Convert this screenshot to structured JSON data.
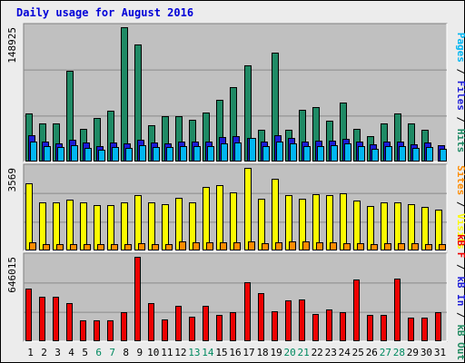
{
  "title": "Daily usage for August 2016",
  "colors": {
    "hits": "#1f8a65",
    "files": "#1c1cd8",
    "pages": "#00b6f2",
    "visits": "#fcfc00",
    "sites": "#ff8c00",
    "kbin": "#1c1cd8",
    "kbout": "#208a60",
    "kbf": "#ee0000",
    "panel_bg": "#c0c0c0",
    "frame_bg": "#ececec",
    "highlight_day": "#008a60",
    "normal_day": "#000000",
    "title": "#0000d8"
  },
  "chart_data": [
    {
      "type": "bar",
      "panel": "hits-files-pages",
      "ymax_label": "148925",
      "ylim": [
        0,
        148925
      ],
      "right_label": [
        {
          "text": "Pages",
          "color": "#00b6f2"
        },
        {
          "text": " / ",
          "color": "#000000"
        },
        {
          "text": "Files",
          "color": "#1c1cd8"
        },
        {
          "text": " / ",
          "color": "#000000"
        },
        {
          "text": "Hits",
          "color": "#1f8a65"
        }
      ],
      "categories": [
        "1",
        "2",
        "3",
        "4",
        "5",
        "6",
        "7",
        "8",
        "9",
        "10",
        "11",
        "12",
        "13",
        "14",
        "15",
        "16",
        "17",
        "18",
        "19",
        "20",
        "21",
        "22",
        "23",
        "24",
        "25",
        "26",
        "27",
        "28",
        "29",
        "30",
        "31"
      ],
      "series": [
        {
          "name": "Hits",
          "color": "#1f8a65",
          "values": [
            53000,
            42000,
            42000,
            101000,
            36000,
            48000,
            56000,
            148925,
            130000,
            40000,
            50000,
            50000,
            46000,
            54000,
            68000,
            83000,
            107000,
            35000,
            121000,
            35000,
            57000,
            60000,
            45000,
            65000,
            36000,
            28000,
            42000,
            53000,
            42000,
            35000,
            0
          ]
        },
        {
          "name": "Files",
          "color": "#1c1cd8",
          "values": [
            29000,
            22000,
            20000,
            24000,
            21000,
            17000,
            21000,
            20000,
            24000,
            21000,
            20000,
            22000,
            22000,
            22000,
            27000,
            28000,
            26000,
            22000,
            29000,
            26000,
            22000,
            23000,
            23000,
            25000,
            22000,
            19000,
            22000,
            22000,
            19000,
            21000,
            18000
          ]
        },
        {
          "name": "Pages",
          "color": "#00b6f2",
          "values": [
            22000,
            17000,
            16000,
            18000,
            15000,
            13000,
            16000,
            15000,
            18000,
            16000,
            16000,
            17000,
            17000,
            17000,
            20000,
            21000,
            26000,
            17000,
            22000,
            20000,
            17000,
            17000,
            18000,
            20000,
            17000,
            14000,
            17000,
            17000,
            15000,
            16000,
            14000
          ]
        }
      ]
    },
    {
      "type": "bar",
      "panel": "visits-sites",
      "ymax_label": "3569",
      "ylim": [
        0,
        3569
      ],
      "right_label": [
        {
          "text": "Sites",
          "color": "#ff8c00"
        },
        {
          "text": " / ",
          "color": "#000000"
        },
        {
          "text": "Visits",
          "color": "#fcfc00"
        }
      ],
      "categories": [
        "1",
        "2",
        "3",
        "4",
        "5",
        "6",
        "7",
        "8",
        "9",
        "10",
        "11",
        "12",
        "13",
        "14",
        "15",
        "16",
        "17",
        "18",
        "19",
        "20",
        "21",
        "22",
        "23",
        "24",
        "25",
        "26",
        "27",
        "28",
        "29",
        "30",
        "31"
      ],
      "series": [
        {
          "name": "Visits",
          "color": "#fcfc00",
          "values": [
            2920,
            2080,
            2080,
            2190,
            2080,
            1960,
            1960,
            2080,
            2410,
            2080,
            2010,
            2280,
            2080,
            2740,
            2820,
            2520,
            3569,
            2250,
            3080,
            2390,
            2230,
            2420,
            2380,
            2460,
            2150,
            1910,
            2080,
            2080,
            2010,
            1900,
            1770
          ]
        },
        {
          "name": "Sites",
          "color": "#ff8c00",
          "values": [
            350,
            280,
            260,
            290,
            270,
            270,
            270,
            290,
            300,
            270,
            270,
            380,
            370,
            340,
            340,
            340,
            400,
            300,
            340,
            380,
            400,
            370,
            360,
            320,
            300,
            290,
            300,
            330,
            300,
            290,
            280
          ]
        }
      ]
    },
    {
      "type": "bar",
      "panel": "kb",
      "ymax_label": "646015",
      "ylim": [
        0,
        646015
      ],
      "right_label": [
        {
          "text": "kB F",
          "color": "#ee0000"
        },
        {
          "text": " / ",
          "color": "#000000"
        },
        {
          "text": "kB In",
          "color": "#1c1cd8"
        },
        {
          "text": " / ",
          "color": "#000000"
        },
        {
          "text": "kB Out",
          "color": "#208a60"
        }
      ],
      "categories": [
        "1",
        "2",
        "3",
        "4",
        "5",
        "6",
        "7",
        "8",
        "9",
        "10",
        "11",
        "12",
        "13",
        "14",
        "15",
        "16",
        "17",
        "18",
        "19",
        "20",
        "21",
        "22",
        "23",
        "24",
        "25",
        "26",
        "27",
        "28",
        "29",
        "30",
        "31"
      ],
      "series": [
        {
          "name": "kB F",
          "color": "#ee0000",
          "values": [
            400000,
            340000,
            340000,
            290000,
            160000,
            160000,
            160000,
            220000,
            646015,
            290000,
            170000,
            270000,
            190000,
            270000,
            200000,
            220000,
            450000,
            370000,
            230000,
            310000,
            320000,
            210000,
            240000,
            220000,
            470000,
            200000,
            200000,
            480000,
            180000,
            180000,
            220000
          ]
        },
        {
          "name": "kB In",
          "color": "#1c1cd8",
          "values": [
            9000,
            9000,
            9000,
            9000,
            9000,
            9000,
            9000,
            9000,
            9000,
            9000,
            9000,
            9000,
            9000,
            9000,
            9000,
            9000,
            9000,
            9000,
            9000,
            9000,
            9000,
            9000,
            9000,
            9000,
            9000,
            9000,
            9000,
            9000,
            9000,
            9000,
            9000
          ]
        },
        {
          "name": "kB Out",
          "color": "#208a60",
          "values": [
            0,
            0,
            0,
            0,
            0,
            0,
            0,
            0,
            0,
            0,
            0,
            0,
            0,
            0,
            0,
            0,
            0,
            0,
            0,
            0,
            0,
            0,
            0,
            0,
            0,
            0,
            0,
            0,
            0,
            0,
            0
          ]
        }
      ]
    }
  ],
  "weekend_days": [
    "6",
    "7",
    "13",
    "14",
    "20",
    "21",
    "27",
    "28"
  ]
}
